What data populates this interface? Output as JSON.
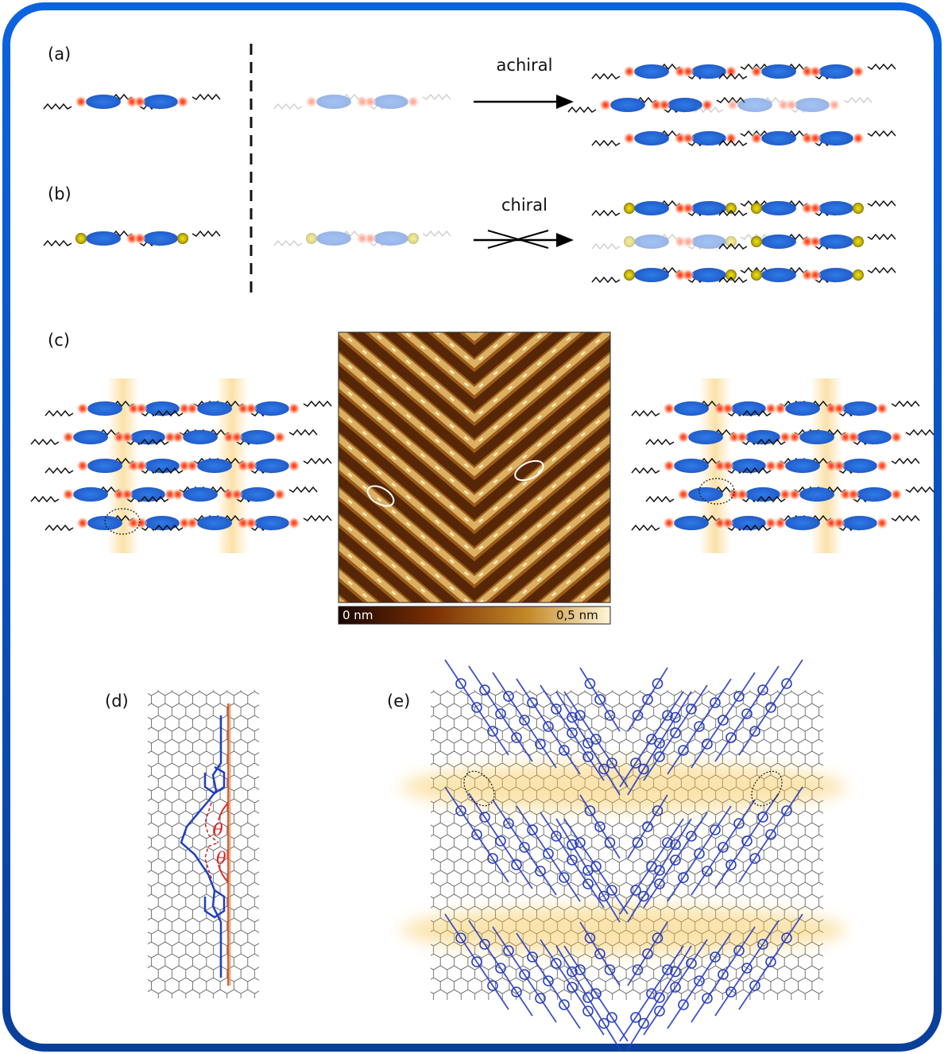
{
  "panels": {
    "a": {
      "label": "(a)"
    },
    "b": {
      "label": "(b)"
    },
    "c": {
      "label": "(c)"
    },
    "d": {
      "label": "(d)",
      "angle_symbol": "θ"
    },
    "e": {
      "label": "(e)"
    }
  },
  "arrows": {
    "achiral": "achiral",
    "chiral": "chiral"
  },
  "colorbar": {
    "min_label": "0 nm",
    "max_label": "0,5 nm"
  },
  "colors": {
    "border": "#0a5fd6",
    "molecule_core": "#2a66d0",
    "red_site": "#f0553a",
    "yellow_site": "#c8b400",
    "highlight": "#f6c34a",
    "lattice": "#333333",
    "chem_blue": "#1f3fbf"
  }
}
